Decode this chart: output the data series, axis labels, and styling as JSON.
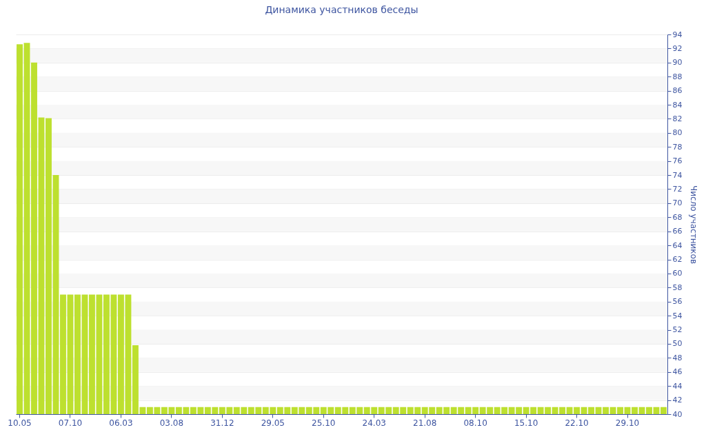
{
  "chart_data": {
    "type": "bar",
    "title": "Динамика участников беседы",
    "ylabel": "Число участников",
    "categories": [
      "10.05",
      null,
      null,
      null,
      null,
      null,
      null,
      "07.10",
      null,
      null,
      null,
      null,
      null,
      null,
      "06.03",
      null,
      null,
      null,
      null,
      null,
      null,
      "03.08",
      null,
      null,
      null,
      null,
      null,
      null,
      "31.12",
      null,
      null,
      null,
      null,
      null,
      null,
      "29.05",
      null,
      null,
      null,
      null,
      null,
      null,
      "25.10",
      null,
      null,
      null,
      null,
      null,
      null,
      "24.03",
      null,
      null,
      null,
      null,
      null,
      null,
      "21.08",
      null,
      null,
      null,
      null,
      null,
      null,
      "08.10",
      null,
      null,
      null,
      null,
      null,
      null,
      "15.10",
      null,
      null,
      null,
      null,
      null,
      null,
      "22.10",
      null,
      null,
      null,
      null,
      null,
      null,
      "29.10",
      null,
      null,
      null,
      null,
      null
    ],
    "values": [
      92.6,
      92.8,
      90,
      82.2,
      82.1,
      74,
      57,
      57,
      57,
      57,
      57,
      57,
      57,
      57,
      57,
      57,
      49.8,
      41,
      41,
      41,
      41,
      41,
      41,
      41,
      41,
      41,
      41,
      41,
      41,
      41,
      41,
      41,
      41,
      41,
      41,
      41,
      41,
      41,
      41,
      41,
      41,
      41,
      41,
      41,
      41,
      41,
      41,
      41,
      41,
      41,
      41,
      41,
      41,
      41,
      41,
      41,
      41,
      41,
      41,
      41,
      41,
      41,
      41,
      41,
      41,
      41,
      41,
      41,
      41,
      41,
      41,
      41,
      41,
      41,
      41,
      41,
      41,
      41,
      41,
      41,
      41,
      41,
      41,
      41,
      41,
      41,
      41,
      41,
      41,
      41
    ],
    "color": "#bde02f",
    "ylim": [
      40,
      94
    ],
    "yticks": [
      40,
      42,
      44,
      46,
      48,
      50,
      52,
      54,
      56,
      58,
      60,
      62,
      64,
      66,
      68,
      70,
      72,
      74,
      76,
      78,
      80,
      82,
      84,
      86,
      88,
      90,
      92,
      94
    ],
    "grid": "y"
  }
}
